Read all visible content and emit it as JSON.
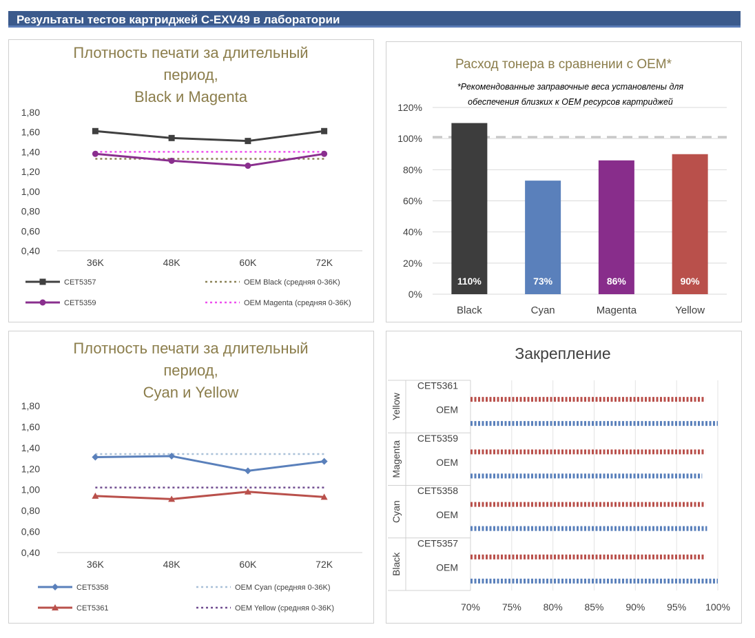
{
  "page_title": "Результаты тестов картриджей C-EXV49 в лаборатории",
  "colors": {
    "header_bg": "#3b5a8c",
    "title_olive": "#8b7d4b",
    "black_series": "#404040",
    "magenta_series": "#8a2f8e",
    "oem_black": "#8b8257",
    "oem_magenta": "#ee4fee",
    "cyan_series": "#5a80bb",
    "yellow_series": "#b9504b",
    "oem_cyan": "#a9c0d8",
    "oem_yellow": "#6f4b8f"
  },
  "chart_data": [
    {
      "type": "line",
      "title": [
        "Плотность печати за длительный",
        "период,",
        "Black и Magenta"
      ],
      "categories": [
        "36K",
        "48K",
        "60K",
        "72K"
      ],
      "yticks": [
        "1,80",
        "1,60",
        "1,40",
        "1,20",
        "1,00",
        "0,80",
        "0,60",
        "0,40"
      ],
      "ylim": [
        0.4,
        1.8
      ],
      "series": [
        {
          "name": "CET5357",
          "values": [
            1.61,
            1.54,
            1.51,
            1.61
          ],
          "style": "solid",
          "marker": "square",
          "color": "#404040"
        },
        {
          "name": "OEM Black (средняя 0-36K)",
          "values": [
            1.33,
            1.33,
            1.33,
            1.33
          ],
          "style": "dotted",
          "color": "#8b8257"
        },
        {
          "name": "CET5359",
          "values": [
            1.38,
            1.31,
            1.26,
            1.38
          ],
          "style": "solid",
          "marker": "circle",
          "color": "#8a2f8e"
        },
        {
          "name": "OEM Magenta (средняя 0-36K)",
          "values": [
            1.4,
            1.4,
            1.4,
            1.4
          ],
          "style": "dotted",
          "color": "#ee4fee"
        }
      ]
    },
    {
      "type": "bar",
      "title": "Расход тонера в сравнении с OEM*",
      "note": [
        "*Рекомендованные заправочные веса установлены для",
        "обеспечения близких к OEM ресурсов картриджей"
      ],
      "categories": [
        "Black",
        "Cyan",
        "Magenta",
        "Yellow"
      ],
      "values": [
        110,
        73,
        86,
        90
      ],
      "value_labels": [
        "110%",
        "73%",
        "86%",
        "90%"
      ],
      "colors": [
        "#3d3d3d",
        "#5a80bb",
        "#882d8b",
        "#b9504b"
      ],
      "yticks": [
        "120%",
        "100%",
        "80%",
        "60%",
        "40%",
        "20%",
        "0%"
      ],
      "ylim": [
        0,
        120
      ],
      "reference_line": 101
    },
    {
      "type": "line",
      "title": [
        "Плотность печати за длительный",
        "период,",
        "Cyan и Yellow"
      ],
      "categories": [
        "36K",
        "48K",
        "60K",
        "72K"
      ],
      "yticks": [
        "1,80",
        "1,60",
        "1,40",
        "1,20",
        "1,00",
        "0,80",
        "0,60",
        "0,40"
      ],
      "ylim": [
        0.4,
        1.8
      ],
      "series": [
        {
          "name": "CET5358",
          "values": [
            1.31,
            1.32,
            1.18,
            1.27
          ],
          "style": "solid",
          "marker": "diamond",
          "color": "#5a80bb"
        },
        {
          "name": "OEM Cyan (средняя 0-36K)",
          "values": [
            1.34,
            1.34,
            1.34,
            1.34
          ],
          "style": "dotted",
          "color": "#a9c0d8"
        },
        {
          "name": "CET5361",
          "values": [
            0.94,
            0.91,
            0.98,
            0.93
          ],
          "style": "solid",
          "marker": "triangle",
          "color": "#b9504b"
        },
        {
          "name": "OEM Yellow (средняя 0-36K)",
          "values": [
            1.02,
            1.02,
            1.02,
            1.02
          ],
          "style": "dotted",
          "color": "#6f4b8f"
        }
      ]
    },
    {
      "type": "bar",
      "orientation": "horizontal",
      "title": "Закрепление",
      "groups": [
        {
          "label": "Yellow",
          "rows": [
            {
              "label": "CET5361",
              "value": 98.5,
              "color": "#b9504b"
            },
            {
              "label": "OEM",
              "value": 100,
              "color": "#5a80bb"
            }
          ]
        },
        {
          "label": "Magenta",
          "rows": [
            {
              "label": "CET5359",
              "value": 98.5,
              "color": "#b9504b"
            },
            {
              "label": "OEM",
              "value": 98.1,
              "color": "#5a80bb"
            }
          ]
        },
        {
          "label": "Cyan",
          "rows": [
            {
              "label": "CET5358",
              "value": 98.5,
              "color": "#b9504b"
            },
            {
              "label": "OEM",
              "value": 98.7,
              "color": "#5a80bb"
            }
          ]
        },
        {
          "label": "Black",
          "rows": [
            {
              "label": "CET5357",
              "value": 98.5,
              "color": "#b9504b"
            },
            {
              "label": "OEM",
              "value": 100,
              "color": "#5a80bb"
            }
          ]
        }
      ],
      "xticks": [
        "70%",
        "75%",
        "80%",
        "85%",
        "90%",
        "95%",
        "100%"
      ],
      "xlim": [
        70,
        100
      ]
    }
  ]
}
